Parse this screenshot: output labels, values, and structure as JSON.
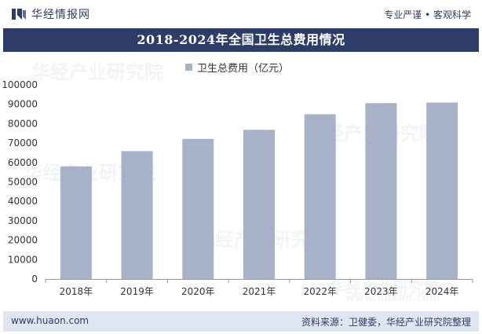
{
  "header": {
    "brand_name": "华经情报网",
    "slogan": "专业严谨 • 客观科学"
  },
  "footer": {
    "website": "www.huaon.com",
    "source": "资料来源：卫健委，华经产业研究院整理"
  },
  "watermark": {
    "text": "华经产业研究院",
    "site": "www.huaon.com"
  },
  "colors": {
    "title_bg": "#2e3d68",
    "bar": "#a7b1c8",
    "footer_bg": "#dfe6f2"
  },
  "chart_data": {
    "type": "bar",
    "title": "2018-2024年全国卫生总费用情况",
    "categories": [
      "2018年",
      "2019年",
      "2020年",
      "2021年",
      "2022年",
      "2023年",
      "2024年"
    ],
    "series": [
      {
        "name": "卫生总费用（亿元）",
        "values": [
          57998,
          65841,
          72175,
          76845,
          84847,
          90576,
          90895
        ]
      }
    ],
    "ylim": [
      0,
      100000
    ],
    "yticks": [
      0,
      10000,
      20000,
      30000,
      40000,
      50000,
      60000,
      70000,
      80000,
      90000,
      100000
    ],
    "xlabel": "",
    "ylabel": "",
    "legend": "top-center",
    "grid": false
  }
}
